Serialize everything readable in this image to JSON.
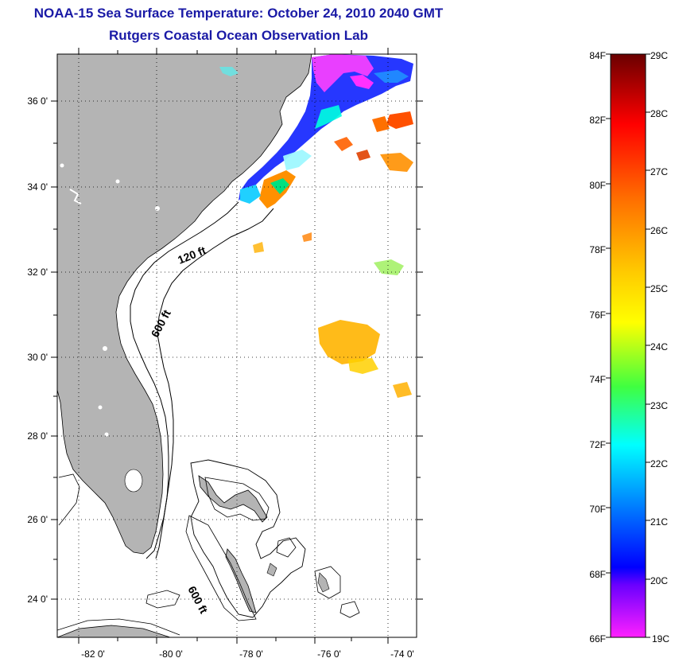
{
  "title": {
    "line1": "NOAA-15 Sea Surface Temperature:  October 24, 2010 2040 GMT",
    "line2": "Rutgers Coastal Ocean Observation Lab"
  },
  "map": {
    "lat_labels": [
      "36 0'",
      "34 0'",
      "32 0'",
      "30 0'",
      "28 0'",
      "26 0'",
      "24 0'"
    ],
    "lon_labels": [
      "-82 0'",
      "-80 0'",
      "-78 0'",
      "-76 0'",
      "-74 0'"
    ],
    "contour_labels": [
      "120 ft",
      "600 ft",
      "600 ft"
    ],
    "colors": {
      "land": "#b4b4b4",
      "ocean": "#ffffff",
      "contour": "#000000",
      "grid": "#000000"
    }
  },
  "colorbar": {
    "fahrenheit_labels": [
      "84F",
      "82F",
      "80F",
      "78F",
      "76F",
      "74F",
      "72F",
      "70F",
      "68F",
      "66F"
    ],
    "celsius_labels": [
      "29C",
      "28C",
      "27C",
      "26C",
      "25C",
      "24C",
      "23C",
      "22C",
      "21C",
      "20C",
      "19C"
    ],
    "gradient_stops": [
      "#6a0000",
      "#ff0000",
      "#ff8000",
      "#ffff00",
      "#00ff80",
      "#00ffff",
      "#0000ff",
      "#8000ff",
      "#ff00ff"
    ]
  }
}
